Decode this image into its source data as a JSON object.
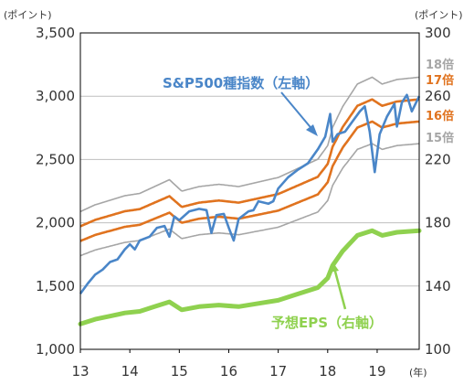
{
  "chart_data": {
    "type": "line",
    "left_axis_unit": "(ポイント)",
    "right_axis_unit": "(ポイント)",
    "x_unit": "(年)",
    "x_ticks": [
      "13",
      "14",
      "15",
      "16",
      "17",
      "18",
      "19"
    ],
    "xlim": [
      2013.0,
      2019.85
    ],
    "left_ylim": [
      1000,
      3500
    ],
    "left_ticks": [
      "1,000",
      "1,500",
      "2,000",
      "2,500",
      "3,000",
      "3,500"
    ],
    "right_ylim": [
      100,
      300
    ],
    "right_ticks": [
      "100",
      "140",
      "180",
      "220",
      "260",
      "300"
    ],
    "grid": true,
    "colors": {
      "sp500": "#4a86c8",
      "eps": "#8fd14f",
      "band_17_16": "#e0731f",
      "band_18_15": "#a6a6a6",
      "grid": "#bfbfbf"
    },
    "series": [
      {
        "name": "S&P500種指数（左軸）",
        "axis": "left",
        "points": [
          [
            2013.0,
            1440
          ],
          [
            2013.15,
            1520
          ],
          [
            2013.3,
            1590
          ],
          [
            2013.45,
            1630
          ],
          [
            2013.6,
            1690
          ],
          [
            2013.75,
            1710
          ],
          [
            2013.9,
            1790
          ],
          [
            2014.0,
            1830
          ],
          [
            2014.1,
            1790
          ],
          [
            2014.2,
            1860
          ],
          [
            2014.4,
            1890
          ],
          [
            2014.55,
            1960
          ],
          [
            2014.7,
            1975
          ],
          [
            2014.8,
            1890
          ],
          [
            2014.9,
            2050
          ],
          [
            2015.0,
            2020
          ],
          [
            2015.2,
            2090
          ],
          [
            2015.4,
            2110
          ],
          [
            2015.55,
            2100
          ],
          [
            2015.65,
            1920
          ],
          [
            2015.75,
            2060
          ],
          [
            2015.9,
            2070
          ],
          [
            2016.0,
            1960
          ],
          [
            2016.1,
            1860
          ],
          [
            2016.2,
            2030
          ],
          [
            2016.4,
            2090
          ],
          [
            2016.5,
            2100
          ],
          [
            2016.6,
            2170
          ],
          [
            2016.8,
            2150
          ],
          [
            2016.9,
            2170
          ],
          [
            2017.0,
            2270
          ],
          [
            2017.2,
            2360
          ],
          [
            2017.4,
            2420
          ],
          [
            2017.6,
            2470
          ],
          [
            2017.8,
            2580
          ],
          [
            2017.95,
            2680
          ],
          [
            2018.05,
            2860
          ],
          [
            2018.1,
            2640
          ],
          [
            2018.2,
            2700
          ],
          [
            2018.35,
            2720
          ],
          [
            2018.5,
            2800
          ],
          [
            2018.65,
            2880
          ],
          [
            2018.75,
            2920
          ],
          [
            2018.85,
            2720
          ],
          [
            2018.95,
            2400
          ],
          [
            2019.05,
            2700
          ],
          [
            2019.2,
            2840
          ],
          [
            2019.35,
            2940
          ],
          [
            2019.4,
            2760
          ],
          [
            2019.5,
            2950
          ],
          [
            2019.6,
            3010
          ],
          [
            2019.7,
            2880
          ],
          [
            2019.85,
            3000
          ]
        ]
      },
      {
        "name": "予想EPS（右軸）",
        "axis": "right",
        "points": [
          [
            2013.0,
            116
          ],
          [
            2013.3,
            119
          ],
          [
            2013.6,
            121
          ],
          [
            2013.9,
            123
          ],
          [
            2014.2,
            124
          ],
          [
            2014.5,
            127
          ],
          [
            2014.8,
            130
          ],
          [
            2015.05,
            125
          ],
          [
            2015.4,
            127
          ],
          [
            2015.8,
            128
          ],
          [
            2016.2,
            127
          ],
          [
            2016.6,
            129
          ],
          [
            2017.0,
            131
          ],
          [
            2017.4,
            135
          ],
          [
            2017.8,
            139
          ],
          [
            2018.0,
            145
          ],
          [
            2018.1,
            153
          ],
          [
            2018.3,
            162
          ],
          [
            2018.6,
            172
          ],
          [
            2018.9,
            175
          ],
          [
            2019.1,
            172
          ],
          [
            2019.4,
            174
          ],
          [
            2019.85,
            175
          ]
        ]
      }
    ],
    "bands": [
      {
        "name": "18倍",
        "multiple": 18
      },
      {
        "name": "17倍",
        "multiple": 17
      },
      {
        "name": "16倍",
        "multiple": 16
      },
      {
        "name": "15倍",
        "multiple": 15
      }
    ]
  }
}
